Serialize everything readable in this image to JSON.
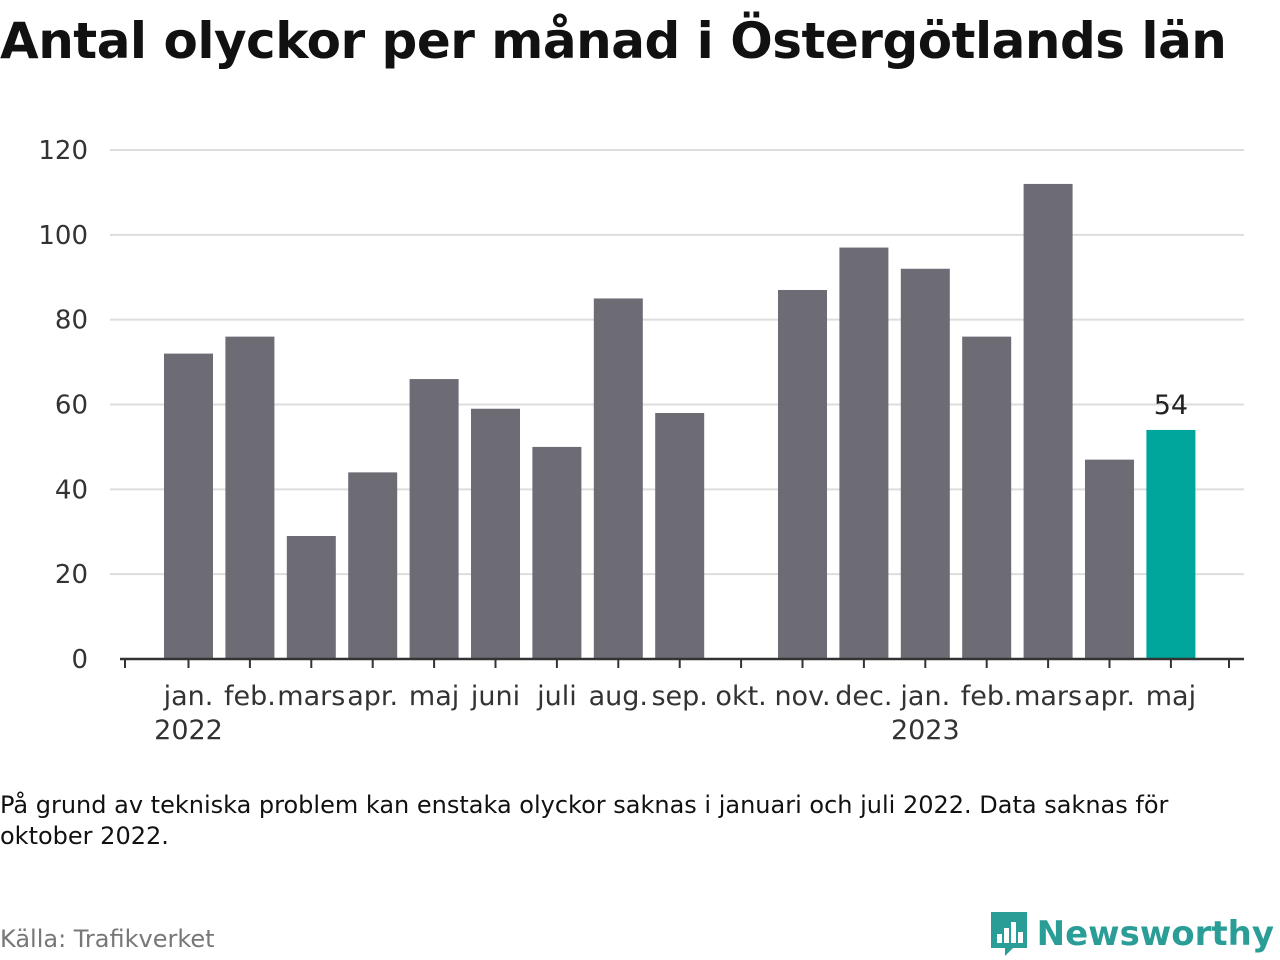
{
  "title": "Antal olyckor per månad i Östergötlands län",
  "note": "På grund av tekniska problem kan enstaka olyckor saknas i januari och juli 2022. Data saknas för oktober 2022.",
  "source": "Källa: Trafikverket",
  "brand": "Newsworthy",
  "colors": {
    "bar": "#6d6c74",
    "highlight": "#00a59b",
    "grid": "#dddddd",
    "axis": "#333333"
  },
  "chart_data": {
    "type": "bar",
    "categories": [
      "jan.",
      "feb.",
      "mars",
      "apr.",
      "maj",
      "juni",
      "juli",
      "aug.",
      "sep.",
      "okt.",
      "nov.",
      "dec.",
      "jan.",
      "feb.",
      "mars",
      "apr.",
      "maj"
    ],
    "years": [
      {
        "index": 0,
        "label": "2022"
      },
      {
        "index": 12,
        "label": "2023"
      }
    ],
    "values": [
      72,
      76,
      29,
      44,
      66,
      59,
      50,
      85,
      58,
      null,
      87,
      97,
      92,
      76,
      112,
      47,
      54
    ],
    "highlight_index": 16,
    "data_labels": [
      {
        "index": 16,
        "label": "54"
      }
    ],
    "yticks": [
      "0",
      "20",
      "40",
      "60",
      "80",
      "100",
      "120"
    ],
    "ylim": [
      0,
      120
    ],
    "grid": true
  }
}
